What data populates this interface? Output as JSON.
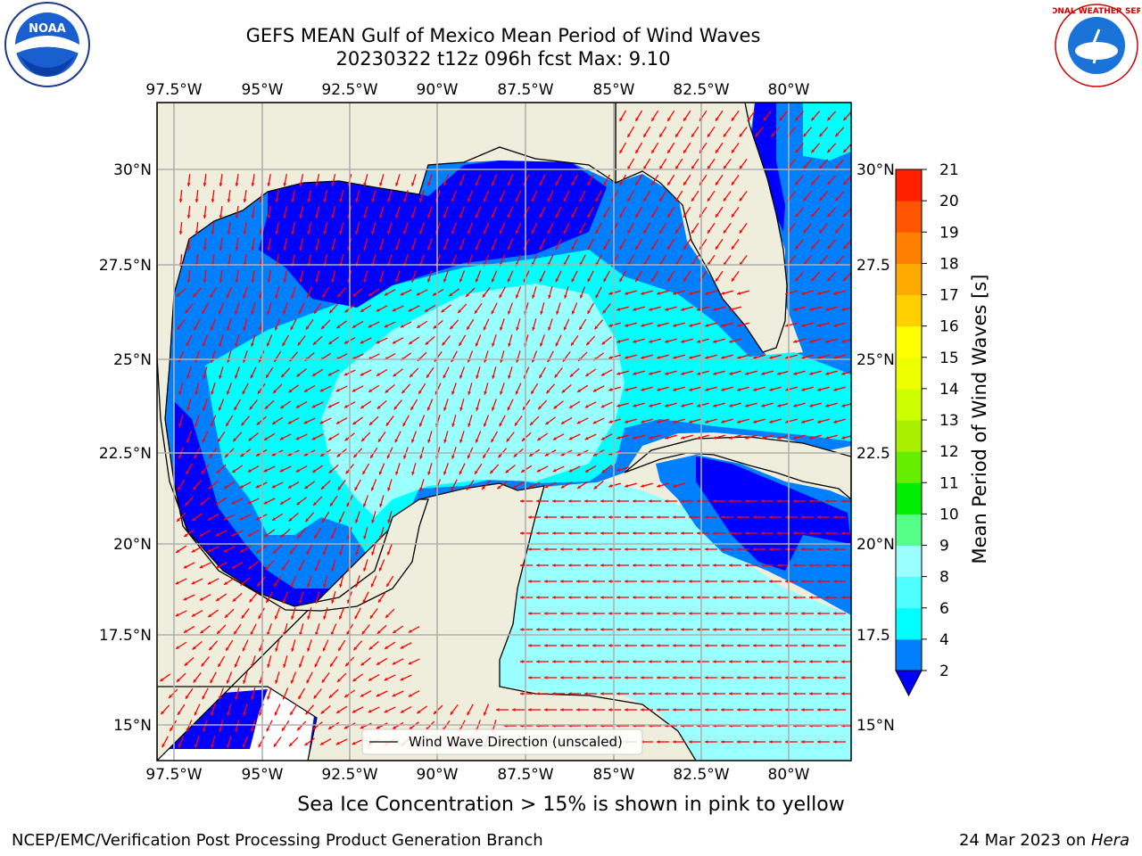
{
  "header": {
    "title_line1": "GEFS MEAN Gulf of Mexico Mean Period of Wind Waves",
    "title_line2": "20230322 t12z 096h fcst   Max: 9.10"
  },
  "map": {
    "lon_labels": [
      "97.5°W",
      "95°W",
      "92.5°W",
      "90°W",
      "87.5°W",
      "85°W",
      "82.5°W",
      "80°W"
    ],
    "lat_labels": [
      "30°N",
      "27.5°N",
      "25°N",
      "22.5°N",
      "20°N",
      "17.5°N",
      "15°N"
    ],
    "lat_labels_right": [
      "30°N",
      "27.5",
      "25°N",
      "22.5",
      "20°N",
      "17.5",
      "15°N"
    ],
    "legend_label": "Wind Wave Direction (unscaled)",
    "colors": {
      "land": "#efeedc",
      "ocean_low": "#0000ff",
      "ocean_mid": "#0080ff",
      "ocean_cyan": "#00ffff",
      "ocean_light": "#99ffff",
      "arrow": "#ff0000",
      "grid": "#b0b0b0"
    }
  },
  "colorbar": {
    "label": "Mean Period of Wind Waves [s]",
    "ticks": [
      "2",
      "4",
      "6",
      "8",
      "9",
      "10",
      "11",
      "12",
      "13",
      "14",
      "15",
      "16",
      "17",
      "18",
      "19",
      "20",
      "21"
    ],
    "colors": [
      "#0080ff",
      "#00ffff",
      "#4dffff",
      "#99ffff",
      "#55ff88",
      "#00ee00",
      "#66ee00",
      "#aaee00",
      "#ccff00",
      "#eeff00",
      "#ffff00",
      "#ffd000",
      "#ffaa00",
      "#ff8000",
      "#ff5500",
      "#ff2000"
    ],
    "extend_color": "#0000ff"
  },
  "note": "Sea Ice Concentration > 15% is shown in pink to yellow",
  "footer": {
    "credit": "NCEP/EMC/Verification Post Processing Product Generation Branch",
    "date": "24 Mar 2023 on ",
    "host": "Hera"
  },
  "logos": {
    "left_text": "NOAA",
    "right_text": "NATIONAL WEATHER SERVICE"
  }
}
